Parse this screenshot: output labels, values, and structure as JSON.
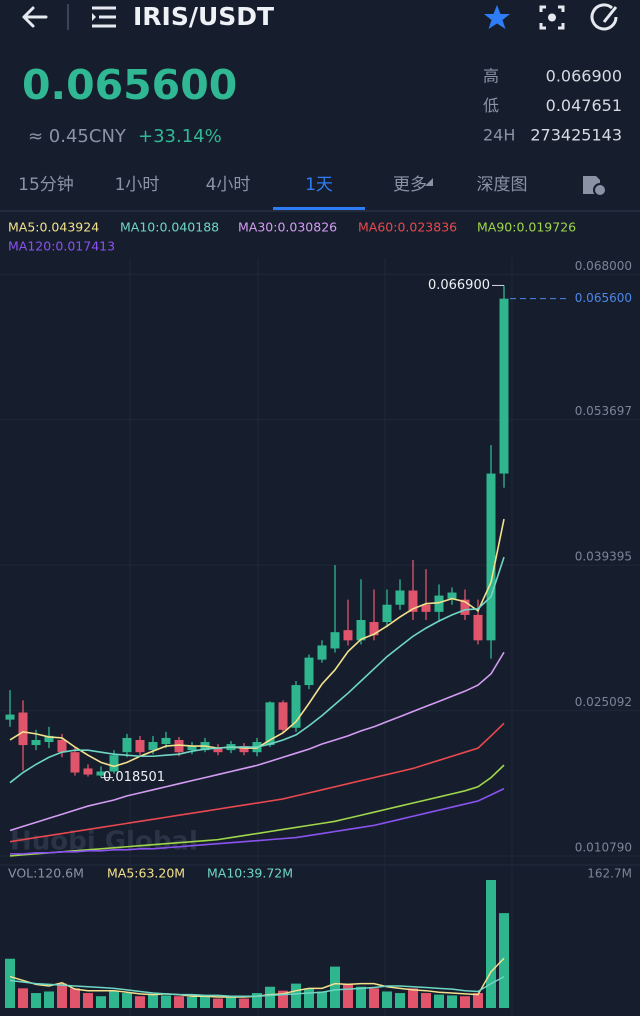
{
  "header": {
    "pair": "IRIS/USDT"
  },
  "ticker": {
    "price": "0.065600",
    "cny": "≈ 0.45CNY",
    "change": "+33.14%",
    "stats": [
      {
        "label": "高",
        "value": "0.066900"
      },
      {
        "label": "低",
        "value": "0.047651"
      },
      {
        "label": "24H",
        "value": "273425143"
      }
    ]
  },
  "tabs": [
    "15分钟",
    "1小时",
    "4小时",
    "1天",
    "更多",
    "深度图"
  ],
  "active_tab": 3,
  "chart_data": [
    {
      "type": "candlestick",
      "watermark": "Huobi Global",
      "up_color": "#2fb68e",
      "down_color": "#e0546c",
      "grid": true,
      "ylim": [
        0.0102,
        0.0696
      ],
      "yticks": [
        {
          "value": 0.068,
          "label": "0.068000"
        },
        {
          "value": 0.053697,
          "label": "0.053697"
        },
        {
          "value": 0.039395,
          "label": "0.039395"
        },
        {
          "value": 0.025092,
          "label": "0.025092"
        },
        {
          "value": 0.01079,
          "label": "0.010790"
        }
      ],
      "open": [
        0.0242,
        0.0249,
        0.0217,
        0.022,
        0.0222,
        0.021,
        0.0194,
        0.0187,
        0.0191,
        0.021,
        0.0222,
        0.0212,
        0.0218,
        0.0222,
        0.0212,
        0.0212,
        0.0214,
        0.0212,
        0.0216,
        0.021,
        0.0217,
        0.0259,
        0.0234,
        0.0276,
        0.0301,
        0.0312,
        0.033,
        0.032,
        0.0338,
        0.0338,
        0.0355,
        0.0369,
        0.0355,
        0.0348,
        0.0361,
        0.036,
        0.0345,
        0.032,
        0.0484
      ],
      "high": [
        0.0271,
        0.0261,
        0.0232,
        0.0235,
        0.0228,
        0.0215,
        0.0198,
        0.0196,
        0.0212,
        0.0228,
        0.0226,
        0.0226,
        0.023,
        0.0225,
        0.022,
        0.0224,
        0.0218,
        0.0221,
        0.0219,
        0.0224,
        0.026,
        0.0261,
        0.028,
        0.0306,
        0.032,
        0.0394,
        0.036,
        0.038,
        0.037,
        0.037,
        0.038,
        0.0399,
        0.039,
        0.0375,
        0.0372,
        0.037,
        0.036,
        0.0512,
        0.0669
      ],
      "low": [
        0.0235,
        0.0192,
        0.0212,
        0.0214,
        0.0205,
        0.0187,
        0.0186,
        0.018501,
        0.0189,
        0.0205,
        0.0206,
        0.0208,
        0.0214,
        0.0206,
        0.0208,
        0.021,
        0.0207,
        0.0209,
        0.0207,
        0.0206,
        0.0215,
        0.0229,
        0.023,
        0.0272,
        0.0298,
        0.0308,
        0.0315,
        0.0316,
        0.032,
        0.0333,
        0.035,
        0.034,
        0.034,
        0.0338,
        0.0355,
        0.034,
        0.0316,
        0.0302,
        0.047
      ],
      "close": [
        0.0247,
        0.0217,
        0.0222,
        0.0226,
        0.021,
        0.019,
        0.0188,
        0.0191,
        0.0207,
        0.0224,
        0.021,
        0.022,
        0.0224,
        0.021,
        0.0216,
        0.022,
        0.021,
        0.0218,
        0.021,
        0.022,
        0.0259,
        0.0232,
        0.0276,
        0.0303,
        0.0315,
        0.0328,
        0.032,
        0.034,
        0.0325,
        0.0355,
        0.0369,
        0.0348,
        0.0348,
        0.0364,
        0.0367,
        0.0345,
        0.032,
        0.0484,
        0.0656
      ],
      "annotations": [
        {
          "value": 0.0669,
          "label": "0.066900"
        },
        {
          "value": 0.018501,
          "label": "0.018501"
        }
      ],
      "last_price": {
        "value": 0.0656,
        "label": "0.065600"
      },
      "series": [
        {
          "label": "MA5:0.043924",
          "color": "#f3e08c",
          "values": [
            0.0222,
            0.023,
            0.0228,
            0.0225,
            0.0224,
            0.0215,
            0.0207,
            0.02,
            0.0196,
            0.02,
            0.0206,
            0.0211,
            0.0216,
            0.0217,
            0.0216,
            0.0216,
            0.0214,
            0.0215,
            0.0214,
            0.0214,
            0.0222,
            0.0229,
            0.024,
            0.0258,
            0.0277,
            0.0291,
            0.0309,
            0.0321,
            0.0326,
            0.0334,
            0.0343,
            0.0351,
            0.0356,
            0.0357,
            0.0361,
            0.0358,
            0.0349,
            0.0377,
            0.043924
          ]
        },
        {
          "label": "MA10:0.040188",
          "color": "#6fd6c4",
          "values": [
            0.018,
            0.019,
            0.0198,
            0.0205,
            0.021,
            0.0212,
            0.0212,
            0.021,
            0.0208,
            0.0207,
            0.0206,
            0.0206,
            0.0207,
            0.0208,
            0.0211,
            0.0213,
            0.0214,
            0.0215,
            0.0215,
            0.0215,
            0.0218,
            0.0222,
            0.0227,
            0.0236,
            0.0246,
            0.0257,
            0.0268,
            0.028,
            0.0292,
            0.0304,
            0.0314,
            0.0324,
            0.0332,
            0.0339,
            0.0345,
            0.035,
            0.0351,
            0.0363,
            0.040188
          ]
        },
        {
          "label": "MA30:0.030826",
          "color": "#d39cf2",
          "values": [
            0.0133,
            0.0137,
            0.0141,
            0.0145,
            0.0149,
            0.0153,
            0.0157,
            0.016,
            0.0163,
            0.0167,
            0.017,
            0.0173,
            0.0176,
            0.0179,
            0.0182,
            0.0185,
            0.0188,
            0.0191,
            0.0194,
            0.0197,
            0.0201,
            0.0205,
            0.0209,
            0.0213,
            0.0218,
            0.0222,
            0.0226,
            0.0231,
            0.0235,
            0.024,
            0.0245,
            0.025,
            0.0255,
            0.026,
            0.0265,
            0.027,
            0.0276,
            0.0287,
            0.030826
          ]
        },
        {
          "label": "MA60:0.023836",
          "color": "#e9484f",
          "values": [
            0.0122,
            0.0124,
            0.0126,
            0.0128,
            0.013,
            0.0132,
            0.0134,
            0.0136,
            0.0138,
            0.014,
            0.0142,
            0.0144,
            0.0146,
            0.0148,
            0.015,
            0.0152,
            0.0154,
            0.0156,
            0.0158,
            0.016,
            0.0162,
            0.0164,
            0.0167,
            0.017,
            0.0173,
            0.0176,
            0.0179,
            0.0182,
            0.0185,
            0.0188,
            0.0191,
            0.0194,
            0.0198,
            0.0202,
            0.0206,
            0.021,
            0.0214,
            0.0226,
            0.023836
          ]
        },
        {
          "label": "MA90:0.019726",
          "color": "#9fd64a",
          "values": [
            0.0108,
            0.0109,
            0.011,
            0.0111,
            0.0112,
            0.0113,
            0.0114,
            0.0115,
            0.0116,
            0.0117,
            0.0118,
            0.0119,
            0.012,
            0.0121,
            0.0122,
            0.0123,
            0.0124,
            0.0126,
            0.0128,
            0.013,
            0.0132,
            0.0134,
            0.0136,
            0.0138,
            0.014,
            0.0142,
            0.0145,
            0.0148,
            0.0151,
            0.0154,
            0.0157,
            0.016,
            0.0163,
            0.0166,
            0.0169,
            0.0172,
            0.0176,
            0.0185,
            0.019726
          ]
        },
        {
          "label": "MA120:0.017413",
          "color": "#8a52f0",
          "values": [
            0.011,
            0.011,
            0.0111,
            0.0111,
            0.0112,
            0.0112,
            0.0113,
            0.0113,
            0.0114,
            0.0114,
            0.0115,
            0.0115,
            0.0116,
            0.0117,
            0.0118,
            0.0119,
            0.012,
            0.0121,
            0.0122,
            0.0123,
            0.0124,
            0.0125,
            0.0126,
            0.0128,
            0.013,
            0.0132,
            0.0134,
            0.0136,
            0.0138,
            0.0141,
            0.0144,
            0.0147,
            0.015,
            0.0153,
            0.0156,
            0.0159,
            0.0162,
            0.0168,
            0.017413
          ]
        }
      ]
    },
    {
      "type": "bar",
      "legend": [
        "VOL:120.6M",
        "MA5:63.20M",
        "MA10:39.72M"
      ],
      "legend_colors": [
        "#8a93a6",
        "#f3e08c",
        "#6fd6c4"
      ],
      "ylim": [
        0,
        162.7
      ],
      "yticks": [
        {
          "value": 162.7,
          "label": "162.7M"
        }
      ],
      "values": [
        62.6,
        25,
        19,
        21,
        31,
        25,
        19,
        15,
        21,
        19,
        15,
        17,
        16,
        15,
        14,
        15,
        12,
        15,
        12,
        19,
        27,
        22,
        31,
        25,
        21,
        52.6,
        31,
        27,
        25,
        21,
        19,
        25,
        19,
        17,
        16,
        15,
        19,
        162.7,
        120.6
      ],
      "series": [
        {
          "color": "#f3e08c",
          "values": [
            40,
            35,
            30,
            28,
            32,
            24,
            22,
            22,
            22,
            20,
            18,
            17,
            18,
            17,
            15,
            15,
            14,
            14,
            14,
            15,
            17,
            18,
            22,
            25,
            25,
            31,
            30,
            31,
            31,
            27,
            25,
            23,
            22,
            20,
            19,
            18,
            17,
            46,
            63.2
          ]
        },
        {
          "color": "#6fd6c4",
          "values": [
            35,
            33,
            31,
            30,
            29,
            28,
            27,
            26,
            25,
            23,
            21,
            19,
            18,
            17,
            17,
            16,
            16,
            15,
            15,
            15,
            16,
            17,
            18,
            19,
            20,
            23,
            24,
            25,
            26,
            28,
            28,
            27,
            26,
            25,
            24,
            22,
            21,
            31,
            39.72
          ]
        }
      ]
    }
  ]
}
